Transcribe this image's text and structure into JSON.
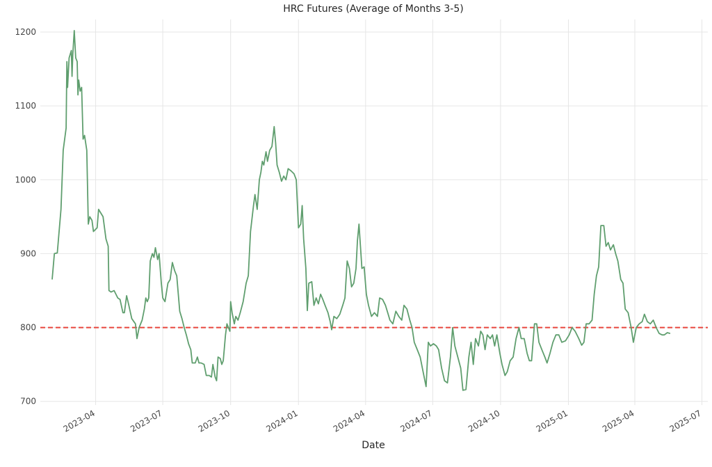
{
  "chart_data": {
    "type": "line",
    "title": "HRC Futures (Average of Months 3-5)",
    "xlabel": "Date",
    "ylabel": "",
    "grid": true,
    "legend": "none",
    "ylim": [
      695,
      1217
    ],
    "xlim": [
      "2023-01-16",
      "2025-07-09"
    ],
    "yticks": [
      700,
      800,
      900,
      1000,
      1100,
      1200
    ],
    "xticks": [
      "2023-04",
      "2023-07",
      "2023-10",
      "2024-01",
      "2024-04",
      "2024-07",
      "2024-10",
      "2025-01",
      "2025-04",
      "2025-07"
    ],
    "reference_line": {
      "y": 800,
      "color": "#e8453c",
      "style": "dashed"
    },
    "series": [
      {
        "color": "#5f9e6e",
        "points": [
          [
            "2023-02-01",
            865
          ],
          [
            "2023-02-04",
            900
          ],
          [
            "2023-02-08",
            901
          ],
          [
            "2023-02-13",
            960
          ],
          [
            "2023-02-16",
            1040
          ],
          [
            "2023-02-20",
            1070
          ],
          [
            "2023-02-21",
            1160
          ],
          [
            "2023-02-22",
            1125
          ],
          [
            "2023-02-24",
            1165
          ],
          [
            "2023-02-27",
            1175
          ],
          [
            "2023-02-28",
            1140
          ],
          [
            "2023-03-01",
            1170
          ],
          [
            "2023-03-03",
            1202
          ],
          [
            "2023-03-05",
            1165
          ],
          [
            "2023-03-07",
            1160
          ],
          [
            "2023-03-08",
            1115
          ],
          [
            "2023-03-09",
            1135
          ],
          [
            "2023-03-11",
            1120
          ],
          [
            "2023-03-13",
            1125
          ],
          [
            "2023-03-15",
            1055
          ],
          [
            "2023-03-17",
            1060
          ],
          [
            "2023-03-20",
            1040
          ],
          [
            "2023-03-22",
            940
          ],
          [
            "2023-03-24",
            950
          ],
          [
            "2023-03-27",
            945
          ],
          [
            "2023-03-29",
            930
          ],
          [
            "2023-04-03",
            935
          ],
          [
            "2023-04-05",
            960
          ],
          [
            "2023-04-08",
            955
          ],
          [
            "2023-04-11",
            950
          ],
          [
            "2023-04-15",
            920
          ],
          [
            "2023-04-18",
            910
          ],
          [
            "2023-04-19",
            850
          ],
          [
            "2023-04-22",
            848
          ],
          [
            "2023-04-26",
            850
          ],
          [
            "2023-05-01",
            840
          ],
          [
            "2023-05-04",
            838
          ],
          [
            "2023-05-08",
            820
          ],
          [
            "2023-05-10",
            820
          ],
          [
            "2023-05-13",
            843
          ],
          [
            "2023-05-16",
            830
          ],
          [
            "2023-05-20",
            812
          ],
          [
            "2023-05-25",
            805
          ],
          [
            "2023-05-27",
            785
          ],
          [
            "2023-05-30",
            800
          ],
          [
            "2023-06-03",
            810
          ],
          [
            "2023-06-06",
            825
          ],
          [
            "2023-06-08",
            840
          ],
          [
            "2023-06-10",
            835
          ],
          [
            "2023-06-12",
            840
          ],
          [
            "2023-06-14",
            890
          ],
          [
            "2023-06-17",
            900
          ],
          [
            "2023-06-19",
            895
          ],
          [
            "2023-06-21",
            908
          ],
          [
            "2023-06-24",
            892
          ],
          [
            "2023-06-26",
            900
          ],
          [
            "2023-06-29",
            860
          ],
          [
            "2023-07-01",
            840
          ],
          [
            "2023-07-04",
            835
          ],
          [
            "2023-07-08",
            860
          ],
          [
            "2023-07-11",
            865
          ],
          [
            "2023-07-14",
            888
          ],
          [
            "2023-07-17",
            877
          ],
          [
            "2023-07-20",
            870
          ],
          [
            "2023-07-24",
            822
          ],
          [
            "2023-07-27",
            812
          ],
          [
            "2023-07-30",
            800
          ],
          [
            "2023-08-02",
            790
          ],
          [
            "2023-08-05",
            778
          ],
          [
            "2023-08-08",
            770
          ],
          [
            "2023-08-10",
            752
          ],
          [
            "2023-08-14",
            752
          ],
          [
            "2023-08-17",
            760
          ],
          [
            "2023-08-19",
            752
          ],
          [
            "2023-08-22",
            752
          ],
          [
            "2023-08-26",
            750
          ],
          [
            "2023-08-29",
            735
          ],
          [
            "2023-09-02",
            735
          ],
          [
            "2023-09-05",
            733
          ],
          [
            "2023-09-07",
            750
          ],
          [
            "2023-09-10",
            733
          ],
          [
            "2023-09-12",
            728
          ],
          [
            "2023-09-14",
            760
          ],
          [
            "2023-09-17",
            758
          ],
          [
            "2023-09-19",
            750
          ],
          [
            "2023-09-21",
            755
          ],
          [
            "2023-09-24",
            790
          ],
          [
            "2023-09-26",
            805
          ],
          [
            "2023-09-28",
            800
          ],
          [
            "2023-09-30",
            795
          ],
          [
            "2023-10-01",
            835
          ],
          [
            "2023-10-03",
            820
          ],
          [
            "2023-10-06",
            805
          ],
          [
            "2023-10-08",
            815
          ],
          [
            "2023-10-11",
            810
          ],
          [
            "2023-10-14",
            820
          ],
          [
            "2023-10-18",
            835
          ],
          [
            "2023-10-22",
            860
          ],
          [
            "2023-10-25",
            870
          ],
          [
            "2023-10-28",
            930
          ],
          [
            "2023-11-01",
            965
          ],
          [
            "2023-11-03",
            980
          ],
          [
            "2023-11-06",
            960
          ],
          [
            "2023-11-09",
            1000
          ],
          [
            "2023-11-11",
            1010
          ],
          [
            "2023-11-13",
            1025
          ],
          [
            "2023-11-15,",
            1020
          ],
          [
            "2023-11-18",
            1038
          ],
          [
            "2023-11-20",
            1025
          ],
          [
            "2023-11-23",
            1040
          ],
          [
            "2023-11-26",
            1045
          ],
          [
            "2023-11-29",
            1072
          ],
          [
            "2023-12-01",
            1050
          ],
          [
            "2023-12-03",
            1020
          ],
          [
            "2023-12-06",
            1010
          ],
          [
            "2023-12-09",
            998
          ],
          [
            "2023-12-12",
            1005
          ],
          [
            "2023-12-15",
            1000
          ],
          [
            "2023-12-18",
            1015
          ],
          [
            "2023-12-22",
            1012
          ],
          [
            "2023-12-26",
            1008
          ],
          [
            "2023-12-29",
            1000
          ],
          [
            "2024-01-01",
            935
          ],
          [
            "2024-01-04",
            940
          ],
          [
            "2024-01-06",
            965
          ],
          [
            "2024-01-08",
            920
          ],
          [
            "2024-01-11",
            880
          ],
          [
            "2024-01-13",
            823
          ],
          [
            "2024-01-15",
            860
          ],
          [
            "2024-01-19",
            862
          ],
          [
            "2024-01-22",
            830
          ],
          [
            "2024-01-25",
            840
          ],
          [
            "2024-01-28",
            832
          ],
          [
            "2024-01-31",
            845
          ],
          [
            "2024-02-03",
            838
          ],
          [
            "2024-02-06",
            830
          ],
          [
            "2024-02-10",
            820
          ],
          [
            "2024-02-13",
            808
          ],
          [
            "2024-02-15",
            797
          ],
          [
            "2024-02-18",
            815
          ],
          [
            "2024-02-22",
            812
          ],
          [
            "2024-02-26",
            818
          ],
          [
            "2024-03-01",
            830
          ],
          [
            "2024-03-04",
            840
          ],
          [
            "2024-03-07",
            890
          ],
          [
            "2024-03-10",
            880
          ],
          [
            "2024-03-13",
            855
          ],
          [
            "2024-03-16",
            860
          ],
          [
            "2024-03-19",
            880
          ],
          [
            "2024-03-21",
            918
          ],
          [
            "2024-03-23",
            940
          ],
          [
            "2024-03-25",
            910
          ],
          [
            "2024-03-27",
            880
          ],
          [
            "2024-03-30",
            882
          ],
          [
            "2024-04-02",
            845
          ],
          [
            "2024-04-05",
            830
          ],
          [
            "2024-04-09",
            815
          ],
          [
            "2024-04-13",
            820
          ],
          [
            "2024-04-17",
            815
          ],
          [
            "2024-04-20",
            840
          ],
          [
            "2024-04-24",
            838
          ],
          [
            "2024-04-28",
            830
          ],
          [
            "2024-05-01",
            820
          ],
          [
            "2024-05-04",
            810
          ],
          [
            "2024-05-08",
            805
          ],
          [
            "2024-05-12",
            822
          ],
          [
            "2024-05-16",
            815
          ],
          [
            "2024-05-20",
            810
          ],
          [
            "2024-05-23",
            830
          ],
          [
            "2024-05-27",
            825
          ],
          [
            "2024-05-31",
            810
          ],
          [
            "2024-06-03",
            800
          ],
          [
            "2024-06-06",
            780
          ],
          [
            "2024-06-10",
            770
          ],
          [
            "2024-06-14",
            760
          ],
          [
            "2024-06-18",
            740
          ],
          [
            "2024-06-22",
            720
          ],
          [
            "2024-06-25",
            780
          ],
          [
            "2024-06-28",
            775
          ],
          [
            "2024-07-02",
            778
          ],
          [
            "2024-07-06",
            775
          ],
          [
            "2024-07-09",
            770
          ],
          [
            "2024-07-13",
            745
          ],
          [
            "2024-07-17",
            728
          ],
          [
            "2024-07-21",
            725
          ],
          [
            "2024-07-25",
            760
          ],
          [
            "2024-07-28",
            800
          ],
          [
            "2024-07-31",
            775
          ],
          [
            "2024-08-04",
            760
          ],
          [
            "2024-08-08",
            745
          ],
          [
            "2024-08-11",
            715
          ],
          [
            "2024-08-15",
            716
          ],
          [
            "2024-08-19",
            760
          ],
          [
            "2024-08-22",
            780
          ],
          [
            "2024-08-25",
            750
          ],
          [
            "2024-08-28",
            785
          ],
          [
            "2024-09-01",
            775
          ],
          [
            "2024-09-04",
            795
          ],
          [
            "2024-09-07",
            790
          ],
          [
            "2024-09-10",
            770
          ],
          [
            "2024-09-13",
            790
          ],
          [
            "2024-09-17",
            785
          ],
          [
            "2024-09-20",
            790
          ],
          [
            "2024-09-23",
            775
          ],
          [
            "2024-09-26",
            790
          ],
          [
            "2024-09-30",
            765
          ],
          [
            "2024-10-03",
            750
          ],
          [
            "2024-10-07",
            735
          ],
          [
            "2024-10-10",
            740
          ],
          [
            "2024-10-14",
            755
          ],
          [
            "2024-10-18",
            760
          ],
          [
            "2024-10-22",
            785
          ],
          [
            "2024-10-26",
            800
          ],
          [
            "2024-10-29",
            785
          ],
          [
            "2024-11-02",
            785
          ],
          [
            "2024-11-06",
            765
          ],
          [
            "2024-11-09",
            755
          ],
          [
            "2024-11-12",
            755
          ],
          [
            "2024-11-16",
            805
          ],
          [
            "2024-11-19",
            805
          ],
          [
            "2024-11-22",
            780
          ],
          [
            "2024-11-26",
            770
          ],
          [
            "2024-11-30",
            760
          ],
          [
            "2024-12-03",
            752
          ],
          [
            "2024-12-07",
            765
          ],
          [
            "2024-12-11",
            780
          ],
          [
            "2024-12-15",
            790
          ],
          [
            "2024-12-19",
            790
          ],
          [
            "2024-12-23",
            780
          ],
          [
            "2024-12-28",
            782
          ],
          [
            "2025-01-02",
            790
          ],
          [
            "2025-01-06",
            800
          ],
          [
            "2025-01-10",
            795
          ],
          [
            "2025-01-15",
            785
          ],
          [
            "2025-01-19",
            776
          ],
          [
            "2025-01-22",
            780
          ],
          [
            "2025-01-25",
            805
          ],
          [
            "2025-01-29",
            805
          ],
          [
            "2025-02-02",
            810
          ],
          [
            "2025-02-05",
            845
          ],
          [
            "2025-02-08",
            870
          ],
          [
            "2025-02-11",
            882
          ],
          [
            "2025-02-14",
            938
          ],
          [
            "2025-02-18",
            938
          ],
          [
            "2025-02-21",
            910
          ],
          [
            "2025-02-24",
            915
          ],
          [
            "2025-02-27",
            905
          ],
          [
            "2025-03-03",
            912
          ],
          [
            "2025-03-06",
            900
          ],
          [
            "2025-03-09",
            890
          ],
          [
            "2025-03-13",
            865
          ],
          [
            "2025-03-16",
            860
          ],
          [
            "2025-03-19",
            825
          ],
          [
            "2025-03-23",
            820
          ],
          [
            "2025-03-27",
            800
          ],
          [
            "2025-03-30",
            780
          ],
          [
            "2025-04-03",
            800
          ],
          [
            "2025-04-07",
            805
          ],
          [
            "2025-04-11",
            808
          ],
          [
            "2025-04-14",
            818
          ],
          [
            "2025-04-18",
            808
          ],
          [
            "2025-04-22",
            805
          ],
          [
            "2025-04-26",
            810
          ],
          [
            "2025-04-30",
            800
          ],
          [
            "2025-05-04",
            792
          ],
          [
            "2025-05-08",
            790
          ],
          [
            "2025-05-11",
            790
          ],
          [
            "2025-05-15",
            793
          ],
          [
            "2025-05-19",
            792
          ]
        ]
      }
    ]
  }
}
